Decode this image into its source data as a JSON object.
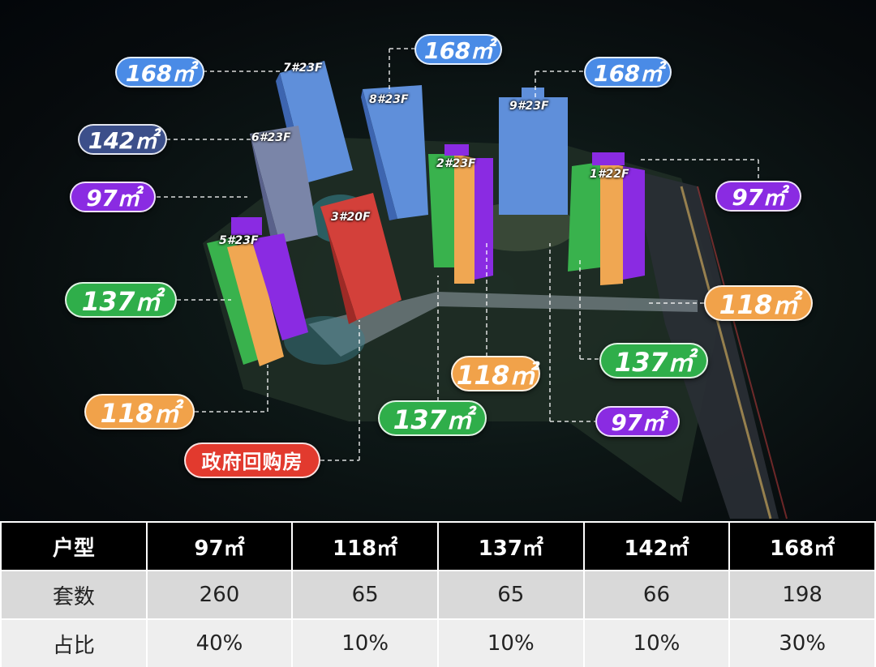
{
  "colors": {
    "blue": "#4a8be6",
    "navy": "#3c4f8a",
    "purple": "#8a2be2",
    "green": "#2fae4a",
    "orange": "#f1a24a",
    "red": "#e23a2e"
  },
  "buildings": {
    "b7": "7#23F",
    "b8": "8#23F",
    "b9": "9#23F",
    "b6": "6#23F",
    "b2": "2#23F",
    "b1": "1#22F",
    "b3": "3#20F",
    "b5": "5#23F"
  },
  "tags": {
    "t168_left": "168㎡",
    "t168_top": "168㎡",
    "t168_right": "168㎡",
    "t142": "142㎡",
    "t97_left": "97㎡",
    "t97_right": "97㎡",
    "t97_bottom": "97㎡",
    "t137_left": "137㎡",
    "t137_mid": "137㎡",
    "t137_right": "137㎡",
    "t118_left": "118㎡",
    "t118_mid": "118㎡",
    "t118_right": "118㎡",
    "gov": "政府回购房"
  },
  "table": {
    "header": [
      "户型",
      "97㎡",
      "118㎡",
      "137㎡",
      "142㎡",
      "168㎡"
    ],
    "rows": [
      [
        "套数",
        "260",
        "65",
        "65",
        "66",
        "198"
      ],
      [
        "占比",
        "40%",
        "10%",
        "10%",
        "10%",
        "30%"
      ]
    ]
  }
}
